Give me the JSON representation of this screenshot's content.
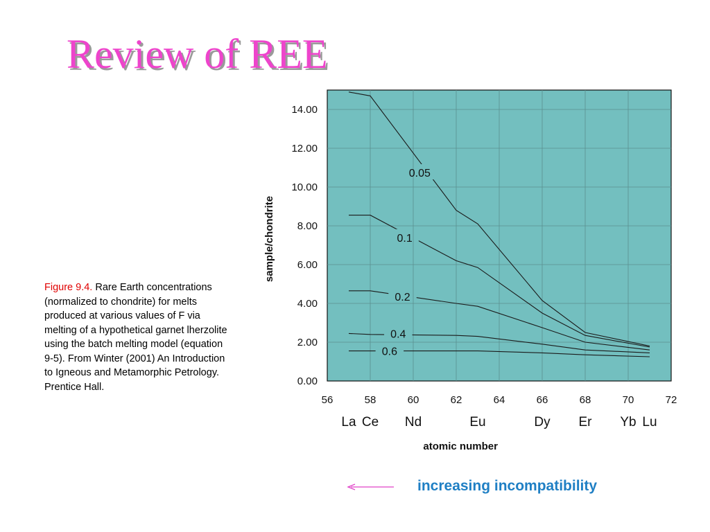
{
  "slide": {
    "title": "Review of REE"
  },
  "caption": {
    "figure_ref": "Figure 9.4.",
    "text": " Rare Earth concentrations (normalized to chondrite) for melts produced at various values of F via melting of a hypothetical garnet lherzolite using the batch melting model (equation 9-5). From Winter (2001) An Introduction to Igneous and Metamorphic Petrology. Prentice Hall."
  },
  "annotation": {
    "arrow_label": "increasing incompatibility",
    "arrow_direction": "left",
    "arrow_color": "#e040c8",
    "label_color": "#1f7fc4"
  },
  "colors": {
    "title": "#ee44cc",
    "plot_background": "#73bfbf",
    "caption_ref": "#e00000"
  },
  "chart_data": {
    "type": "line",
    "title": "",
    "xlabel": "atomic number",
    "ylabel": "sample/chondrite",
    "xlim": [
      56,
      72
    ],
    "ylim": [
      0,
      14.8
    ],
    "x_ticks": [
      56,
      58,
      60,
      62,
      64,
      66,
      68,
      70,
      72
    ],
    "y_ticks": [
      0,
      2,
      4,
      6,
      8,
      10,
      12,
      14
    ],
    "y_tick_labels": [
      "0.00",
      "2.00",
      "4.00",
      "6.00",
      "8.00",
      "10.00",
      "12.00",
      "14.00"
    ],
    "element_labels": [
      {
        "name": "La",
        "x": 57
      },
      {
        "name": "Ce",
        "x": 58
      },
      {
        "name": "Nd",
        "x": 60
      },
      {
        "name": "Eu",
        "x": 63
      },
      {
        "name": "Dy",
        "x": 66
      },
      {
        "name": "Er",
        "x": 68
      },
      {
        "name": "Yb",
        "x": 70
      },
      {
        "name": "Lu",
        "x": 71
      }
    ],
    "grid": true,
    "series": [
      {
        "name": "0.05",
        "label_x": 60.3,
        "label_y": 10.75,
        "points": [
          [
            57,
            14.9
          ],
          [
            58,
            14.7
          ],
          [
            62,
            8.8
          ],
          [
            63,
            8.1
          ],
          [
            66,
            4.15
          ],
          [
            68,
            2.5
          ],
          [
            71,
            1.8
          ]
        ]
      },
      {
        "name": "0.1",
        "label_x": 59.6,
        "label_y": 7.4,
        "points": [
          [
            57,
            8.55
          ],
          [
            58,
            8.55
          ],
          [
            62,
            6.2
          ],
          [
            63,
            5.85
          ],
          [
            66,
            3.5
          ],
          [
            68,
            2.35
          ],
          [
            71,
            1.75
          ]
        ]
      },
      {
        "name": "0.2",
        "label_x": 59.5,
        "label_y": 4.35,
        "points": [
          [
            57,
            4.65
          ],
          [
            58,
            4.65
          ],
          [
            62,
            4.0
          ],
          [
            63,
            3.85
          ],
          [
            66,
            2.75
          ],
          [
            68,
            2.0
          ],
          [
            71,
            1.6
          ]
        ]
      },
      {
        "name": "0.4",
        "label_x": 59.3,
        "label_y": 2.45,
        "points": [
          [
            57,
            2.45
          ],
          [
            58,
            2.4
          ],
          [
            62,
            2.35
          ],
          [
            63,
            2.3
          ],
          [
            66,
            1.9
          ],
          [
            68,
            1.6
          ],
          [
            71,
            1.45
          ]
        ]
      },
      {
        "name": "0.6",
        "label_x": 58.9,
        "label_y": 1.55,
        "points": [
          [
            57,
            1.55
          ],
          [
            58,
            1.55
          ],
          [
            62,
            1.55
          ],
          [
            63,
            1.55
          ],
          [
            66,
            1.45
          ],
          [
            68,
            1.35
          ],
          [
            71,
            1.25
          ]
        ]
      }
    ]
  }
}
